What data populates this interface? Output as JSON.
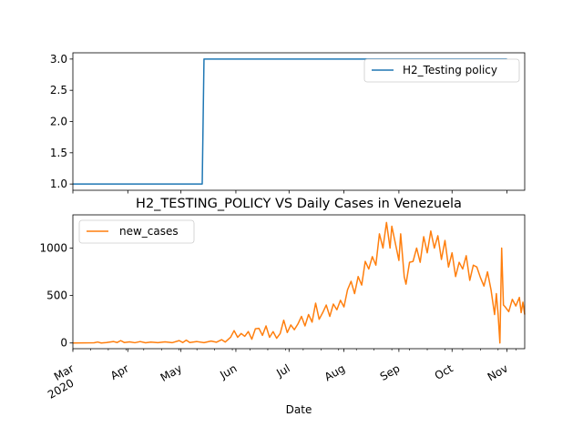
{
  "chart_data": [
    {
      "type": "line",
      "title": "",
      "xlabel": "",
      "ylabel": "",
      "ylim": [
        0.9,
        3.1
      ],
      "yticks": [
        "1.0",
        "1.5",
        "2.0",
        "2.5",
        "3.0"
      ],
      "legend_placement": "top-right",
      "grid": false,
      "series": [
        {
          "name": "H2_Testing policy",
          "color": "#1f77b4",
          "points": [
            [
              "2020-03-01",
              1
            ],
            [
              "2020-05-13",
              1
            ],
            [
              "2020-05-14",
              3
            ],
            [
              "2020-11-01",
              3
            ]
          ]
        }
      ]
    },
    {
      "type": "line",
      "title": "H2_TESTING_POLICY VS Daily Cases in Venezuela",
      "xlabel": "Date",
      "ylabel": "",
      "ylim": [
        -60,
        1350
      ],
      "yticks": [
        "0",
        "500",
        "1000"
      ],
      "legend_placement": "top-left",
      "grid": false,
      "xticks": [
        {
          "date": "2020-03-01",
          "label": "Mar",
          "sublabel": "2020"
        },
        {
          "date": "2020-04-01",
          "label": "Apr",
          "sublabel": ""
        },
        {
          "date": "2020-05-01",
          "label": "May",
          "sublabel": ""
        },
        {
          "date": "2020-06-01",
          "label": "Jun",
          "sublabel": ""
        },
        {
          "date": "2020-07-01",
          "label": "Jul",
          "sublabel": ""
        },
        {
          "date": "2020-08-01",
          "label": "Aug",
          "sublabel": ""
        },
        {
          "date": "2020-09-01",
          "label": "Sep",
          "sublabel": ""
        },
        {
          "date": "2020-10-01",
          "label": "Oct",
          "sublabel": ""
        },
        {
          "date": "2020-11-01",
          "label": "Nov",
          "sublabel": ""
        }
      ],
      "series": [
        {
          "name": "new_cases",
          "color": "#ff7f0e",
          "points": [
            [
              "2020-03-01",
              0
            ],
            [
              "2020-03-13",
              2
            ],
            [
              "2020-03-15",
              10
            ],
            [
              "2020-03-17",
              0
            ],
            [
              "2020-03-20",
              5
            ],
            [
              "2020-03-24",
              15
            ],
            [
              "2020-03-26",
              5
            ],
            [
              "2020-03-28",
              25
            ],
            [
              "2020-03-30",
              5
            ],
            [
              "2020-04-02",
              12
            ],
            [
              "2020-04-05",
              3
            ],
            [
              "2020-04-08",
              15
            ],
            [
              "2020-04-11",
              2
            ],
            [
              "2020-04-14",
              10
            ],
            [
              "2020-04-18",
              4
            ],
            [
              "2020-04-22",
              12
            ],
            [
              "2020-04-26",
              3
            ],
            [
              "2020-04-30",
              25
            ],
            [
              "2020-05-02",
              5
            ],
            [
              "2020-05-04",
              30
            ],
            [
              "2020-05-06",
              5
            ],
            [
              "2020-05-10",
              15
            ],
            [
              "2020-05-14",
              4
            ],
            [
              "2020-05-18",
              20
            ],
            [
              "2020-05-21",
              8
            ],
            [
              "2020-05-24",
              35
            ],
            [
              "2020-05-26",
              10
            ],
            [
              "2020-05-29",
              60
            ],
            [
              "2020-05-31",
              130
            ],
            [
              "2020-06-02",
              60
            ],
            [
              "2020-06-04",
              100
            ],
            [
              "2020-06-06",
              70
            ],
            [
              "2020-06-08",
              120
            ],
            [
              "2020-06-10",
              40
            ],
            [
              "2020-06-12",
              150
            ],
            [
              "2020-06-14",
              155
            ],
            [
              "2020-06-16",
              80
            ],
            [
              "2020-06-18",
              180
            ],
            [
              "2020-06-20",
              60
            ],
            [
              "2020-06-22",
              120
            ],
            [
              "2020-06-24",
              50
            ],
            [
              "2020-06-26",
              100
            ],
            [
              "2020-06-28",
              240
            ],
            [
              "2020-06-30",
              110
            ],
            [
              "2020-07-02",
              190
            ],
            [
              "2020-07-04",
              140
            ],
            [
              "2020-07-06",
              200
            ],
            [
              "2020-07-08",
              280
            ],
            [
              "2020-07-10",
              180
            ],
            [
              "2020-07-12",
              300
            ],
            [
              "2020-07-14",
              220
            ],
            [
              "2020-07-16",
              420
            ],
            [
              "2020-07-18",
              250
            ],
            [
              "2020-07-20",
              320
            ],
            [
              "2020-07-22",
              400
            ],
            [
              "2020-07-24",
              280
            ],
            [
              "2020-07-26",
              410
            ],
            [
              "2020-07-28",
              350
            ],
            [
              "2020-07-30",
              450
            ],
            [
              "2020-08-01",
              380
            ],
            [
              "2020-08-03",
              560
            ],
            [
              "2020-08-05",
              650
            ],
            [
              "2020-08-07",
              520
            ],
            [
              "2020-08-09",
              700
            ],
            [
              "2020-08-11",
              610
            ],
            [
              "2020-08-13",
              860
            ],
            [
              "2020-08-15",
              780
            ],
            [
              "2020-08-17",
              910
            ],
            [
              "2020-08-19",
              820
            ],
            [
              "2020-08-21",
              1150
            ],
            [
              "2020-08-23",
              1000
            ],
            [
              "2020-08-25",
              1270
            ],
            [
              "2020-08-27",
              1000
            ],
            [
              "2020-08-28",
              1230
            ],
            [
              "2020-08-30",
              1050
            ],
            [
              "2020-09-01",
              870
            ],
            [
              "2020-09-02",
              1150
            ],
            [
              "2020-09-04",
              700
            ],
            [
              "2020-09-05",
              620
            ],
            [
              "2020-09-07",
              850
            ],
            [
              "2020-09-09",
              860
            ],
            [
              "2020-09-11",
              1000
            ],
            [
              "2020-09-13",
              850
            ],
            [
              "2020-09-15",
              1120
            ],
            [
              "2020-09-17",
              950
            ],
            [
              "2020-09-19",
              1180
            ],
            [
              "2020-09-21",
              1000
            ],
            [
              "2020-09-23",
              1130
            ],
            [
              "2020-09-25",
              880
            ],
            [
              "2020-09-27",
              1080
            ],
            [
              "2020-09-29",
              800
            ],
            [
              "2020-10-01",
              950
            ],
            [
              "2020-10-03",
              700
            ],
            [
              "2020-10-05",
              850
            ],
            [
              "2020-10-07",
              780
            ],
            [
              "2020-10-09",
              920
            ],
            [
              "2020-10-11",
              660
            ],
            [
              "2020-10-13",
              820
            ],
            [
              "2020-10-15",
              800
            ],
            [
              "2020-10-17",
              690
            ],
            [
              "2020-10-19",
              600
            ],
            [
              "2020-10-21",
              750
            ],
            [
              "2020-10-23",
              560
            ],
            [
              "2020-10-25",
              300
            ],
            [
              "2020-10-26",
              520
            ],
            [
              "2020-10-27",
              300
            ],
            [
              "2020-10-28",
              0
            ],
            [
              "2020-10-29",
              1000
            ],
            [
              "2020-10-30",
              400
            ],
            [
              "2020-10-31",
              380
            ],
            [
              "2020-11-02",
              330
            ],
            [
              "2020-11-04",
              460
            ],
            [
              "2020-11-06",
              390
            ],
            [
              "2020-11-08",
              480
            ],
            [
              "2020-11-09",
              320
            ],
            [
              "2020-11-10",
              430
            ],
            [
              "2020-11-11",
              300
            ]
          ]
        }
      ]
    }
  ]
}
